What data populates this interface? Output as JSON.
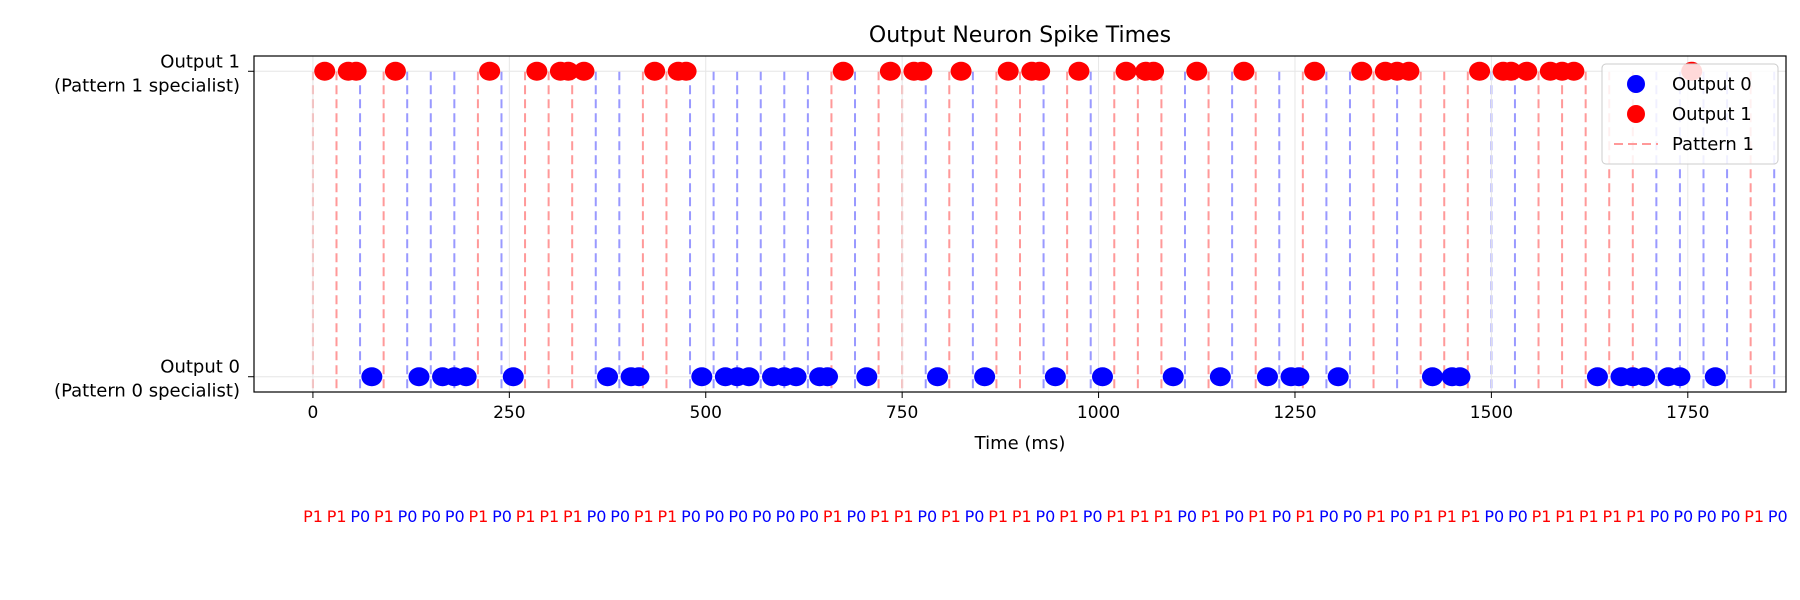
{
  "chart_data": {
    "type": "scatter",
    "title": "Output Neuron Spike Times",
    "xlabel": "Time (ms)",
    "ylabel": "",
    "xlim": [
      -75,
      1875
    ],
    "ylim": [
      -0.05,
      1.05
    ],
    "xticks": [
      0,
      250,
      500,
      750,
      1000,
      1250,
      1500,
      1750
    ],
    "xtick_labels": [
      "0",
      "250",
      "500",
      "750",
      "1000",
      "1250",
      "1500",
      "1750"
    ],
    "yticks": [
      0,
      1
    ],
    "ytick_labels": [
      {
        "line1": "Output 0",
        "line2": "(Pattern 0 specialist)"
      },
      {
        "line1": "Output 1",
        "line2": "(Pattern 1 specialist)"
      }
    ],
    "grid": true,
    "legend_position": "upper right",
    "legend": [
      {
        "label": "Output 0",
        "marker": "dot",
        "color": "#0000ff"
      },
      {
        "label": "Output 1",
        "marker": "dot",
        "color": "#ff0000"
      },
      {
        "label": "Pattern 1",
        "marker": "dashed-line",
        "color": "#ff9999"
      }
    ],
    "pattern_period_ms": 30,
    "pattern_sequence": [
      "P1",
      "P1",
      "P0",
      "P1",
      "P0",
      "P0",
      "P0",
      "P1",
      "P0",
      "P1",
      "P1",
      "P1",
      "P0",
      "P0",
      "P1",
      "P1",
      "P0",
      "P0",
      "P0",
      "P0",
      "P0",
      "P0",
      "P1",
      "P0",
      "P1",
      "P1",
      "P0",
      "P1",
      "P0",
      "P1",
      "P1",
      "P0",
      "P1",
      "P0",
      "P1",
      "P1",
      "P1",
      "P0",
      "P1",
      "P0",
      "P1",
      "P0",
      "P1",
      "P0",
      "P0",
      "P1",
      "P0",
      "P1",
      "P1",
      "P1",
      "P0",
      "P0",
      "P1",
      "P1",
      "P1",
      "P1",
      "P1",
      "P0",
      "P0",
      "P0",
      "P0",
      "P1",
      "P0"
    ],
    "pattern_colors": {
      "P0": "#0000ff",
      "P1": "#ff0000"
    },
    "series": [
      {
        "name": "Output 0",
        "color": "#0000ff",
        "y": 0,
        "x": [
          75,
          135,
          165,
          180,
          195,
          255,
          375,
          405,
          415,
          495,
          525,
          540,
          555,
          585,
          600,
          615,
          645,
          655,
          705,
          795,
          855,
          945,
          1005,
          1095,
          1155,
          1215,
          1245,
          1255,
          1305,
          1425,
          1450,
          1460,
          1635,
          1665,
          1680,
          1695,
          1725,
          1740,
          1785
        ]
      },
      {
        "name": "Output 1",
        "color": "#ff0000",
        "y": 1,
        "x": [
          15,
          45,
          55,
          105,
          225,
          285,
          315,
          325,
          345,
          435,
          465,
          475,
          675,
          735,
          765,
          775,
          825,
          885,
          915,
          925,
          975,
          1035,
          1060,
          1070,
          1125,
          1185,
          1275,
          1335,
          1365,
          1380,
          1395,
          1485,
          1515,
          1525,
          1545,
          1575,
          1590,
          1605,
          1755
        ]
      }
    ]
  }
}
